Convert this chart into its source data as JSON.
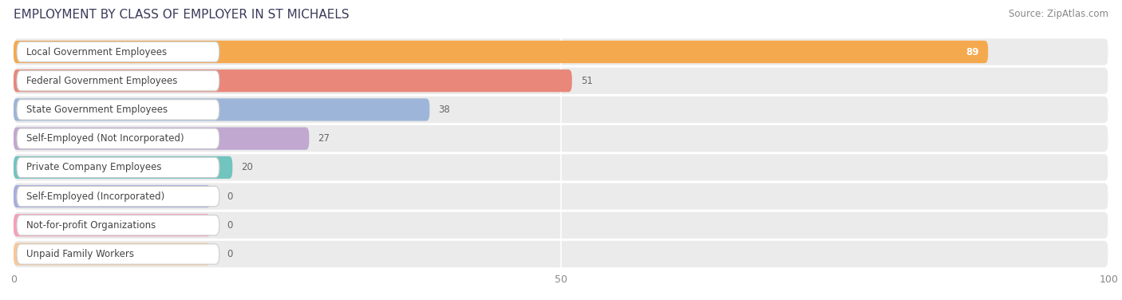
{
  "title": "EMPLOYMENT BY CLASS OF EMPLOYER IN ST MICHAELS",
  "source": "Source: ZipAtlas.com",
  "categories": [
    "Local Government Employees",
    "Federal Government Employees",
    "State Government Employees",
    "Self-Employed (Not Incorporated)",
    "Private Company Employees",
    "Self-Employed (Incorporated)",
    "Not-for-profit Organizations",
    "Unpaid Family Workers"
  ],
  "values": [
    89,
    51,
    38,
    27,
    20,
    0,
    0,
    0
  ],
  "bar_colors": [
    "#f5a94e",
    "#e8877a",
    "#9db5d8",
    "#c0a8d0",
    "#72c4be",
    "#a8aede",
    "#f5a0b8",
    "#f8c898"
  ],
  "xlim": [
    0,
    100
  ],
  "xticks": [
    0,
    50,
    100
  ],
  "fig_bg": "#ffffff",
  "row_bg": "#ebebeb",
  "title_fontsize": 11,
  "label_fontsize": 8.5,
  "value_fontsize": 8.5,
  "source_fontsize": 8.5
}
